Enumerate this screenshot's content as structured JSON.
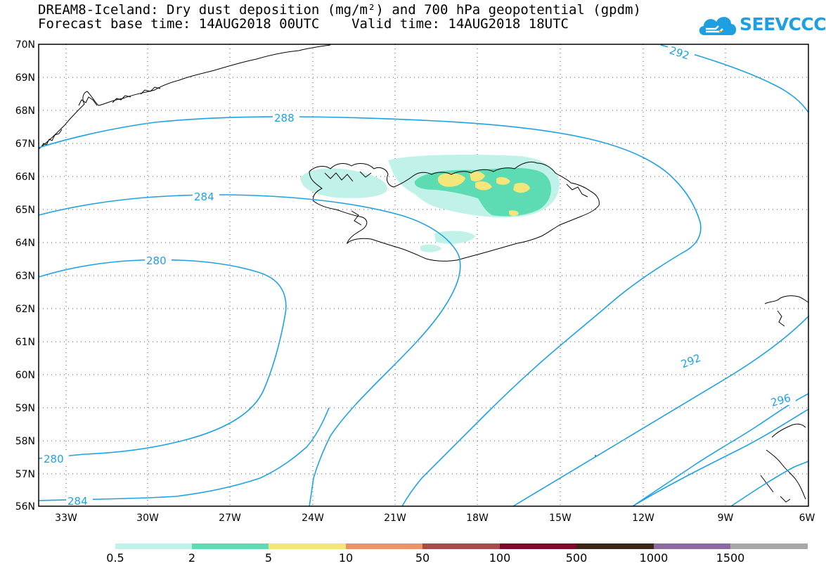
{
  "title": {
    "line1": "DREAM8-Iceland: Dry dust deposition (mg/m²) and 700 hPa geopotential (gpdm)",
    "line2": "Forecast base time: 14AUG2018 00UTC    Valid time: 14AUG2018 18UTC"
  },
  "logo": {
    "text": "SEEVCCC",
    "icon": "cloud-icon",
    "color": "#1e9fe0"
  },
  "map": {
    "lat_labels": [
      "70N",
      "69N",
      "68N",
      "67N",
      "66N",
      "65N",
      "64N",
      "63N",
      "62N",
      "61N",
      "60N",
      "59N",
      "58N",
      "57N",
      "56N"
    ],
    "lon_labels": [
      "33W",
      "30W",
      "27W",
      "24W",
      "21W",
      "18W",
      "15W",
      "12W",
      "9W",
      "6W"
    ],
    "extent": {
      "lon_min": -34,
      "lon_max": -6,
      "lat_min": 56,
      "lat_max": 70
    },
    "contour_color": "#1ea2e4",
    "contour_labels": [
      "292",
      "288",
      "284",
      "280",
      "280",
      "284",
      "292",
      "296"
    ]
  },
  "colorbar": {
    "colors": [
      "#c0f2e9",
      "#5ddcb3",
      "#f5e67a",
      "#ec916a",
      "#a84c49",
      "#7d0a2a",
      "#3b2516",
      "#8d6ba0",
      "#a8a8a8"
    ],
    "labels": [
      "0.5",
      "2",
      "5",
      "10",
      "50",
      "100",
      "500",
      "1000",
      "1500"
    ]
  }
}
